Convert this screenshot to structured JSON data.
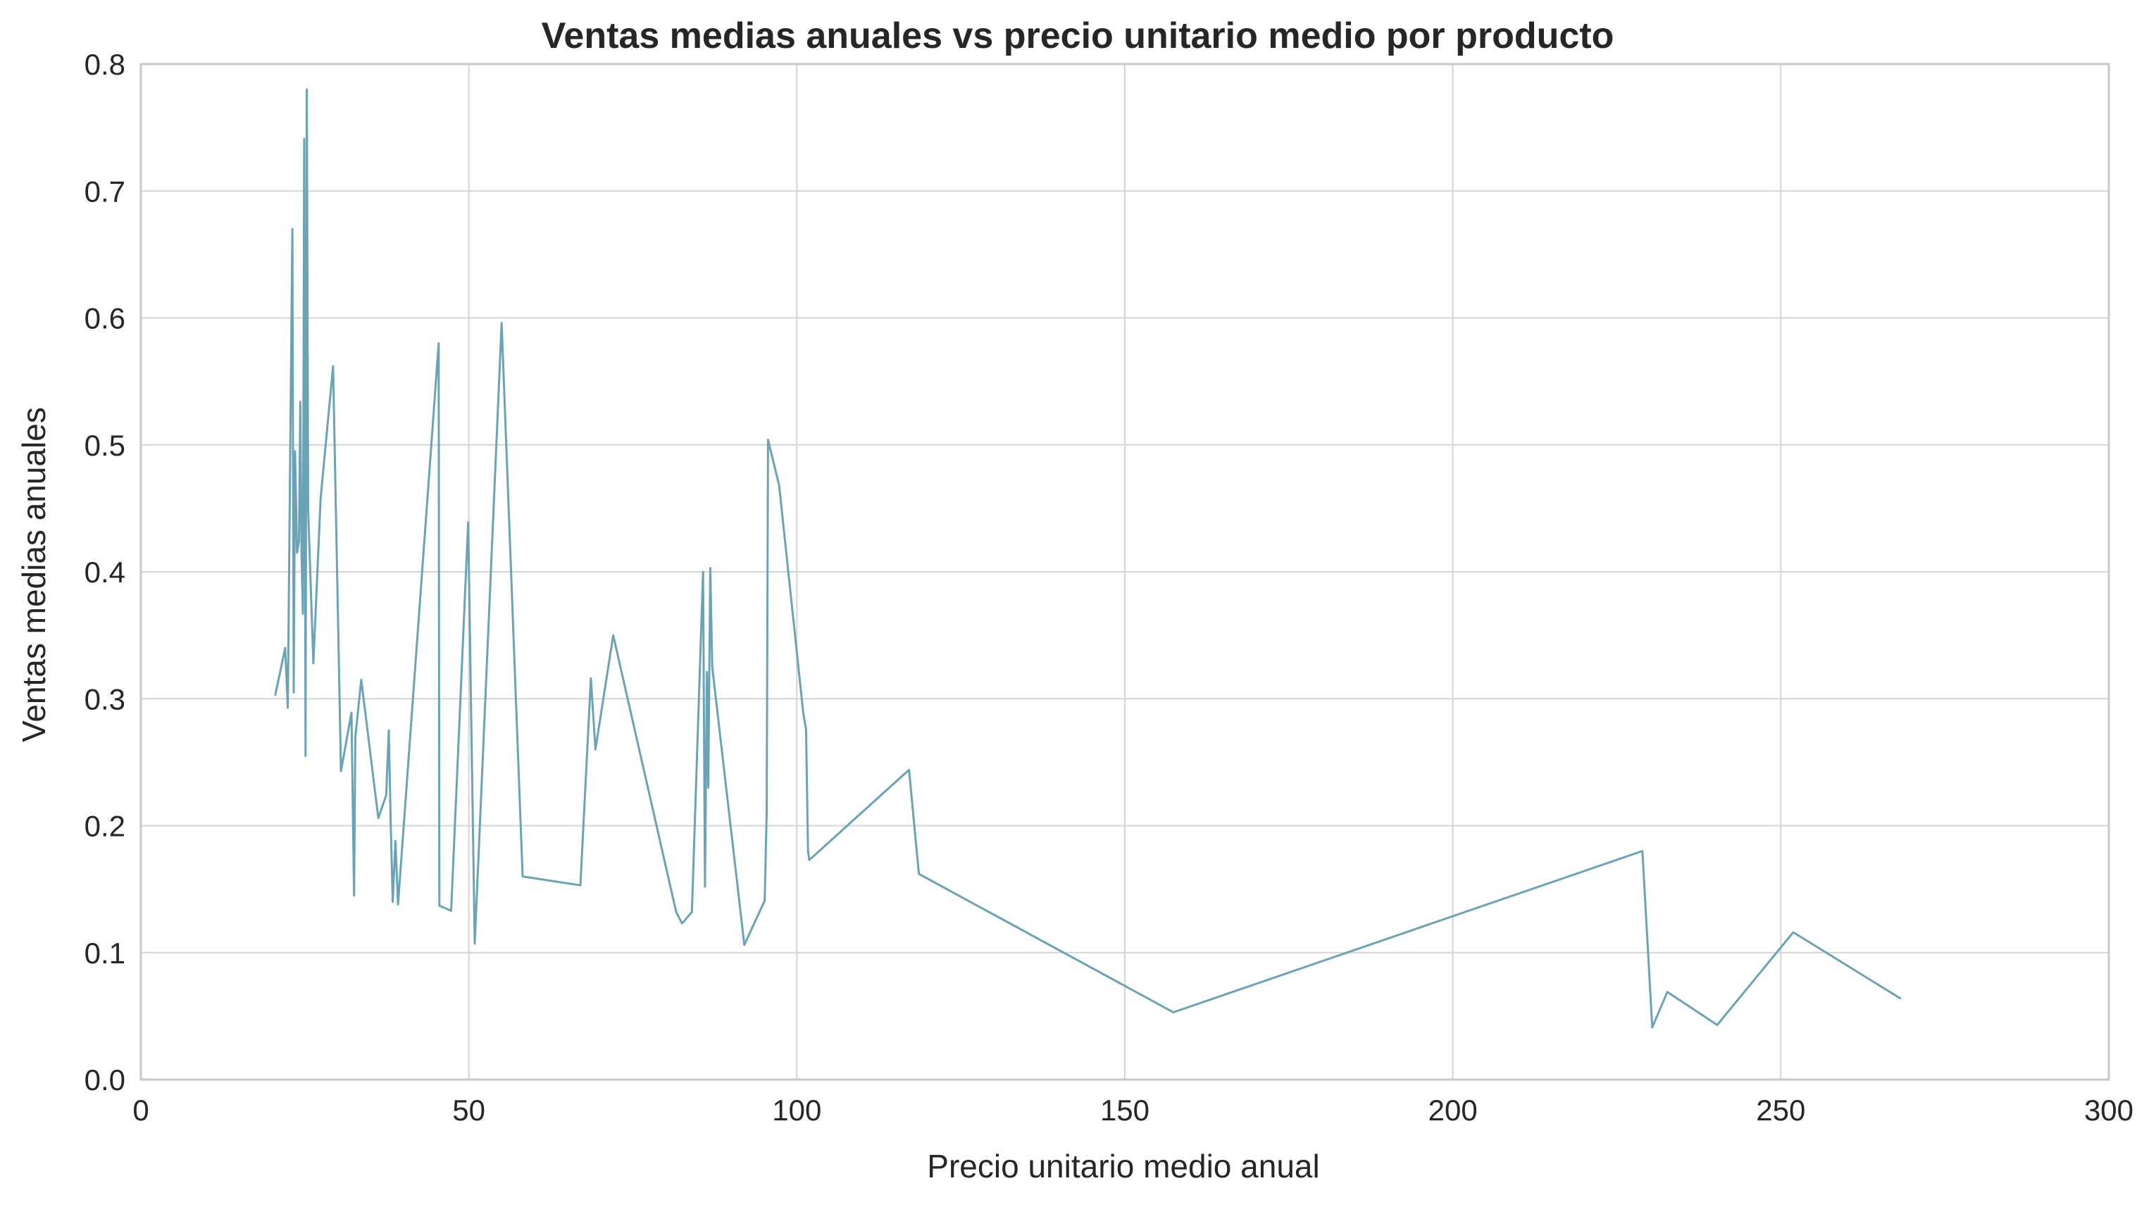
{
  "chart_data": {
    "type": "line",
    "title": "Ventas medias anuales vs precio unitario medio por producto",
    "xlabel": "Precio unitario medio anual",
    "ylabel": "Ventas medias anuales",
    "xlim": [
      0,
      300
    ],
    "ylim": [
      0.0,
      0.8
    ],
    "x_ticks": [
      0,
      50,
      100,
      150,
      200,
      250,
      300
    ],
    "y_ticks": [
      0.0,
      0.1,
      0.2,
      0.3,
      0.4,
      0.5,
      0.6,
      0.7,
      0.8
    ],
    "x_tick_labels": [
      "0",
      "50",
      "100",
      "150",
      "200",
      "250",
      "300"
    ],
    "y_tick_labels": [
      "0.0",
      "0.1",
      "0.2",
      "0.3",
      "0.4",
      "0.5",
      "0.6",
      "0.7",
      "0.8"
    ],
    "grid": true,
    "legend": false,
    "colors": {
      "line": "#6aa3b5",
      "grid": "#d4d4d4",
      "frame": "#c8c8c8",
      "text": "#262626"
    },
    "series": [
      {
        "x": [
          20.5,
          22.0,
          22.4,
          23.1,
          23.3,
          23.5,
          23.8,
          24.1,
          24.3,
          24.5,
          24.7,
          24.9,
          25.1,
          25.3,
          25.5,
          26.3,
          27.4,
          29.3,
          30.5,
          32.1,
          32.5,
          32.7,
          33.6,
          36.2,
          37.4,
          37.8,
          38.1,
          38.4,
          38.8,
          39.2,
          45.4,
          45.5,
          47.3,
          49.9,
          50.9,
          55.0,
          58.2,
          67.0,
          68.6,
          69.3,
          72.0,
          81.6,
          82.5,
          84.0,
          85.7,
          86.0,
          86.3,
          86.5,
          86.8,
          87.1,
          92.0,
          95.1,
          95.4,
          95.6,
          97.3,
          101.0,
          101.4,
          101.7,
          101.9,
          117.1,
          118.6,
          157.4,
          228.9,
          230.4,
          232.7,
          240.3,
          251.9,
          268.2
        ],
        "y": [
          0.303,
          0.34,
          0.293,
          0.67,
          0.305,
          0.495,
          0.415,
          0.424,
          0.534,
          0.412,
          0.367,
          0.741,
          0.255,
          0.78,
          0.449,
          0.328,
          0.458,
          0.562,
          0.243,
          0.289,
          0.145,
          0.27,
          0.315,
          0.206,
          0.224,
          0.275,
          0.2,
          0.14,
          0.188,
          0.138,
          0.58,
          0.137,
          0.133,
          0.439,
          0.107,
          0.596,
          0.16,
          0.153,
          0.316,
          0.26,
          0.35,
          0.132,
          0.123,
          0.132,
          0.4,
          0.152,
          0.321,
          0.23,
          0.403,
          0.325,
          0.106,
          0.141,
          0.211,
          0.504,
          0.468,
          0.288,
          0.276,
          0.18,
          0.173,
          0.244,
          0.162,
          0.053,
          0.18,
          0.041,
          0.069,
          0.043,
          0.116,
          0.064
        ]
      }
    ]
  }
}
